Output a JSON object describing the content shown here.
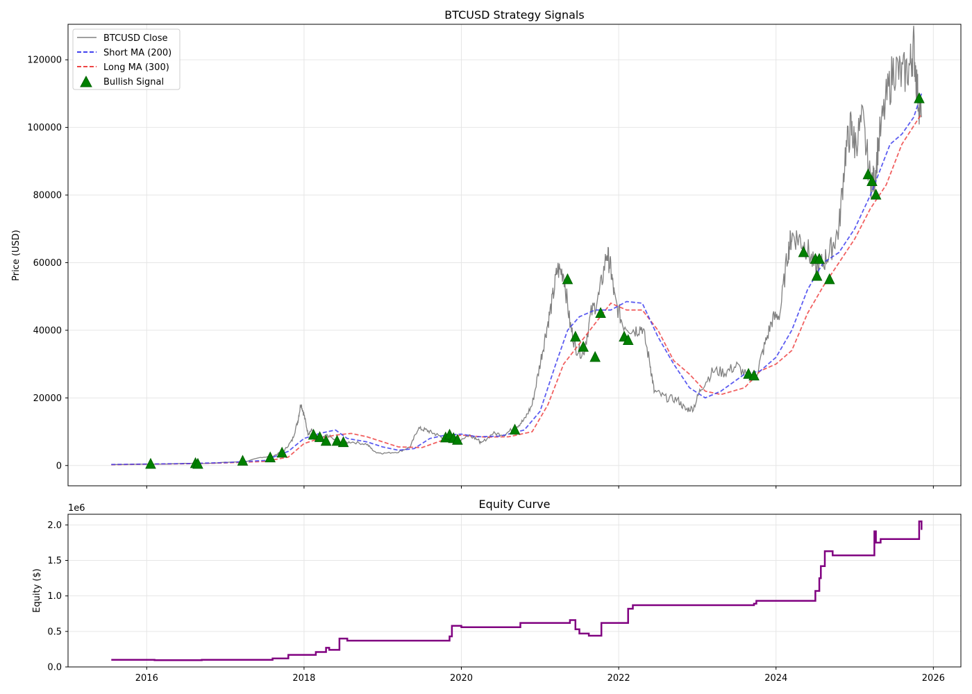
{
  "chart_data": [
    {
      "type": "line",
      "title": "BTCUSD Strategy Signals",
      "xlabel": "",
      "ylabel": "Price (USD)",
      "xlim": [
        2015.0,
        2026.35
      ],
      "ylim": [
        -6000,
        130500
      ],
      "grid": true,
      "legend_position": "upper-left",
      "x_ticks": [
        2016,
        2018,
        2020,
        2022,
        2024,
        2026
      ],
      "y_ticks": [
        0,
        20000,
        40000,
        60000,
        80000,
        100000,
        120000
      ],
      "y_tick_labels": [
        "0",
        "20000",
        "40000",
        "60000",
        "80000",
        "100000",
        "120000"
      ],
      "legend": [
        "BTCUSD Close",
        "Short MA (200)",
        "Long MA (300)",
        "Bullish Signal"
      ],
      "colors": {
        "close": "#808080",
        "short_ma": "#4040ee",
        "long_ma": "#ee4444",
        "signal": "#008000",
        "signal_edge": "#006400"
      },
      "series": [
        {
          "name": "BTCUSD Close",
          "x": [
            2015.55,
            2015.8,
            2016.0,
            2016.25,
            2016.5,
            2016.75,
            2017.0,
            2017.25,
            2017.45,
            2017.6,
            2017.75,
            2017.85,
            2017.92,
            2017.96,
            2018.0,
            2018.05,
            2018.1,
            2018.2,
            2018.3,
            2018.45,
            2018.6,
            2018.8,
            2018.9,
            2019.0,
            2019.2,
            2019.35,
            2019.45,
            2019.55,
            2019.65,
            2019.75,
            2019.85,
            2019.95,
            2020.1,
            2020.2,
            2020.25,
            2020.4,
            2020.55,
            2020.7,
            2020.8,
            2020.9,
            2021.0,
            2021.08,
            2021.15,
            2021.22,
            2021.3,
            2021.38,
            2021.45,
            2021.55,
            2021.65,
            2021.75,
            2021.85,
            2021.9,
            2021.95,
            2022.05,
            2022.2,
            2022.3,
            2022.4,
            2022.45,
            2022.6,
            2022.75,
            2022.85,
            2022.95,
            2023.05,
            2023.2,
            2023.35,
            2023.5,
            2023.65,
            2023.75,
            2023.85,
            2023.95,
            2024.05,
            2024.15,
            2024.2,
            2024.3,
            2024.4,
            2024.5,
            2024.6,
            2024.7,
            2024.8,
            2024.88,
            2024.95,
            2025.0,
            2025.1,
            2025.2,
            2025.25,
            2025.3,
            2025.4,
            2025.5,
            2025.6,
            2025.7,
            2025.75,
            2025.8,
            2025.85
          ],
          "y": [
            280,
            350,
            430,
            420,
            650,
            600,
            950,
            1100,
            2400,
            2700,
            4500,
            7500,
            13000,
            18500,
            15000,
            9500,
            10500,
            7500,
            9000,
            6500,
            7000,
            6300,
            4000,
            3600,
            4000,
            5500,
            11000,
            10500,
            9500,
            8500,
            8000,
            7200,
            9000,
            8000,
            6500,
            9500,
            9200,
            11500,
            13500,
            18000,
            30000,
            40000,
            48000,
            58000,
            57000,
            42000,
            35000,
            33000,
            45000,
            50000,
            63000,
            58000,
            49000,
            42000,
            40000,
            41000,
            30000,
            22000,
            20000,
            19500,
            16500,
            17000,
            23000,
            28000,
            27500,
            29500,
            26000,
            27000,
            35000,
            43000,
            45000,
            63000,
            68000,
            67000,
            64000,
            58000,
            60000,
            64000,
            70000,
            92000,
            100000,
            95000,
            102000,
            84000,
            84000,
            95000,
            108000,
            118000,
            115000,
            118000,
            124000,
            110000,
            103000
          ]
        },
        {
          "name": "Short MA (200)",
          "x": [
            2015.55,
            2016.0,
            2016.5,
            2017.0,
            2017.5,
            2017.8,
            2018.0,
            2018.2,
            2018.4,
            2018.55,
            2018.8,
            2019.0,
            2019.2,
            2019.4,
            2019.6,
            2019.8,
            2020.0,
            2020.2,
            2020.5,
            2020.8,
            2021.0,
            2021.2,
            2021.35,
            2021.5,
            2021.7,
            2021.9,
            2022.1,
            2022.3,
            2022.5,
            2022.7,
            2022.9,
            2023.1,
            2023.3,
            2023.6,
            2023.8,
            2024.0,
            2024.2,
            2024.4,
            2024.6,
            2024.8,
            2025.0,
            2025.2,
            2025.45,
            2025.6,
            2025.75,
            2025.85
          ],
          "y": [
            300,
            420,
            560,
            850,
            1500,
            4200,
            8000,
            9500,
            10500,
            8000,
            7000,
            5500,
            4500,
            5000,
            8000,
            9000,
            9300,
            8500,
            8700,
            10500,
            16000,
            30000,
            40000,
            44000,
            46000,
            46000,
            48500,
            48000,
            38000,
            30000,
            23000,
            20000,
            22000,
            27000,
            28000,
            32000,
            40000,
            52000,
            60000,
            63000,
            70000,
            80000,
            95000,
            98000,
            103000,
            110000
          ]
        },
        {
          "name": "Long MA (300)",
          "x": [
            2015.55,
            2016.0,
            2016.5,
            2017.0,
            2017.5,
            2017.8,
            2018.0,
            2018.2,
            2018.4,
            2018.6,
            2018.8,
            2019.0,
            2019.2,
            2019.5,
            2019.8,
            2020.0,
            2020.3,
            2020.6,
            2020.9,
            2021.1,
            2021.3,
            2021.5,
            2021.7,
            2021.9,
            2022.1,
            2022.3,
            2022.5,
            2022.7,
            2022.9,
            2023.1,
            2023.3,
            2023.6,
            2023.8,
            2024.0,
            2024.2,
            2024.4,
            2024.6,
            2024.8,
            2025.0,
            2025.2,
            2025.4,
            2025.6,
            2025.85
          ],
          "y": [
            250,
            380,
            520,
            780,
            1200,
            2500,
            6500,
            8000,
            9000,
            9500,
            8500,
            7000,
            5500,
            5300,
            7800,
            9000,
            8400,
            8500,
            10000,
            18000,
            30000,
            36000,
            42000,
            48000,
            46000,
            46000,
            40000,
            31000,
            27000,
            22000,
            21000,
            23000,
            28000,
            30000,
            34000,
            45000,
            53000,
            60000,
            67000,
            76000,
            83000,
            95000,
            104000
          ]
        }
      ],
      "signals": {
        "name": "Bullish Signal",
        "x": [
          2016.05,
          2016.62,
          2016.65,
          2017.22,
          2017.57,
          2017.72,
          2018.12,
          2018.2,
          2018.28,
          2018.42,
          2018.5,
          2019.8,
          2019.85,
          2019.9,
          2019.95,
          2020.68,
          2021.35,
          2021.45,
          2021.55,
          2021.7,
          2021.77,
          2022.07,
          2022.12,
          2023.65,
          2023.72,
          2024.35,
          2024.5,
          2024.52,
          2024.55,
          2024.68,
          2025.17,
          2025.22,
          2025.27,
          2025.82
        ],
        "y": [
          400,
          600,
          400,
          1300,
          2300,
          3700,
          9000,
          8300,
          7200,
          7200,
          6800,
          8200,
          9000,
          8000,
          7500,
          10500,
          55000,
          38000,
          35000,
          32000,
          45000,
          38000,
          37000,
          27000,
          26500,
          63000,
          61000,
          56000,
          61000,
          55000,
          86000,
          84000,
          80000,
          108500
        ]
      }
    },
    {
      "type": "line",
      "title": "Equity Curve",
      "xlabel": "",
      "ylabel": "Equity ($)",
      "offset_label": "1e6",
      "xlim": [
        2015.0,
        2026.35
      ],
      "ylim": [
        0,
        2.15
      ],
      "grid": true,
      "x_ticks": [
        2016,
        2018,
        2020,
        2022,
        2024,
        2026
      ],
      "x_tick_labels": [
        "2016",
        "2018",
        "2020",
        "2022",
        "2024",
        "2026"
      ],
      "y_ticks": [
        0,
        0.5,
        1.0,
        1.5,
        2.0
      ],
      "y_tick_labels": [
        "0.0",
        "0.5",
        "1.0",
        "1.5",
        "2.0"
      ],
      "colors": {
        "equity": "#800080"
      },
      "series": [
        {
          "name": "Equity",
          "step_x": [
            2015.55,
            2016.1,
            2016.7,
            2017.2,
            2017.6,
            2017.8,
            2018.15,
            2018.28,
            2018.32,
            2018.45,
            2018.55,
            2019.85,
            2019.88,
            2020.0,
            2020.75,
            2021.38,
            2021.45,
            2021.5,
            2021.62,
            2021.78,
            2022.12,
            2022.18,
            2023.72,
            2023.75,
            2024.35,
            2024.5,
            2024.55,
            2024.57,
            2024.62,
            2024.72,
            2025.25,
            2025.27,
            2025.33,
            2025.82
          ],
          "step_y": [
            0.1,
            0.095,
            0.1,
            0.1,
            0.12,
            0.17,
            0.21,
            0.27,
            0.24,
            0.4,
            0.37,
            0.43,
            0.58,
            0.56,
            0.62,
            0.66,
            0.53,
            0.47,
            0.44,
            0.62,
            0.82,
            0.87,
            0.89,
            0.93,
            0.93,
            1.07,
            1.25,
            1.42,
            1.63,
            1.57,
            1.91,
            1.75,
            1.8,
            2.05
          ],
          "end_x": 2025.85,
          "end_y": 1.93
        }
      ]
    }
  ]
}
